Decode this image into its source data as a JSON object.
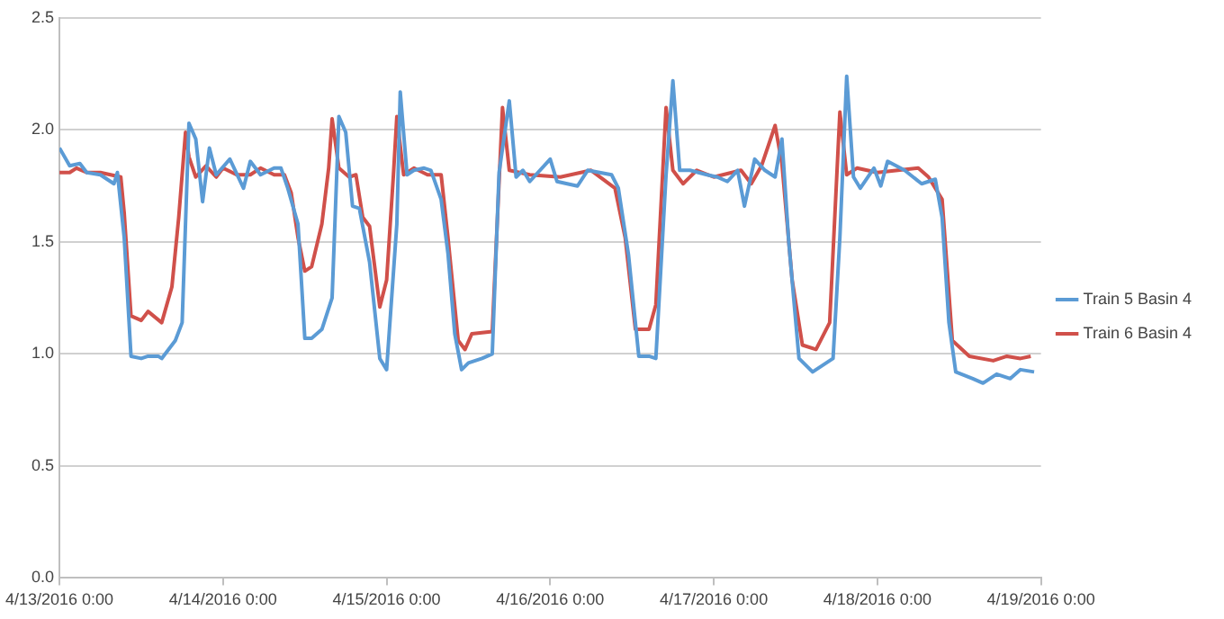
{
  "chart_data": {
    "type": "line",
    "xlim": [
      "2016-04-13T00:00",
      "2016-04-19T00:00"
    ],
    "xticks": [
      {
        "value": "2016-04-13T00:00",
        "label": "4/13/2016 0:00"
      },
      {
        "value": "2016-04-14T00:00",
        "label": "4/14/2016 0:00"
      },
      {
        "value": "2016-04-15T00:00",
        "label": "4/15/2016 0:00"
      },
      {
        "value": "2016-04-16T00:00",
        "label": "4/16/2016 0:00"
      },
      {
        "value": "2016-04-17T00:00",
        "label": "4/17/2016 0:00"
      },
      {
        "value": "2016-04-18T00:00",
        "label": "4/18/2016 0:00"
      },
      {
        "value": "2016-04-19T00:00",
        "label": "4/19/2016 0:00"
      }
    ],
    "ylim": [
      0,
      2.5
    ],
    "yticks": [
      {
        "value": 0,
        "label": "0.0"
      },
      {
        "value": 0.5,
        "label": "0.5"
      },
      {
        "value": 1,
        "label": "1.0"
      },
      {
        "value": 1.5,
        "label": "1.5"
      },
      {
        "value": 2,
        "label": "2.0"
      },
      {
        "value": 2.5,
        "label": "2.5"
      }
    ],
    "grid": "y",
    "legend": "right",
    "marker": "none",
    "line_style": "solid",
    "series": [
      {
        "name": "Train 5 Basin 4",
        "color": "#5b9bd5",
        "x": [
          "2016-04-13T00:00",
          "2016-04-13T01:30",
          "2016-04-13T03:00",
          "2016-04-13T04:00",
          "2016-04-13T06:00",
          "2016-04-13T08:00",
          "2016-04-13T08:30",
          "2016-04-13T09:30",
          "2016-04-13T10:30",
          "2016-04-13T12:00",
          "2016-04-13T13:00",
          "2016-04-13T14:30",
          "2016-04-13T15:00",
          "2016-04-13T17:00",
          "2016-04-13T18:00",
          "2016-04-13T19:00",
          "2016-04-13T20:00",
          "2016-04-13T21:00",
          "2016-04-13T22:00",
          "2016-04-13T23:00",
          "2016-04-14T01:00",
          "2016-04-14T03:00",
          "2016-04-14T04:00",
          "2016-04-14T05:30",
          "2016-04-14T07:30",
          "2016-04-14T08:30",
          "2016-04-14T09:30",
          "2016-04-14T11:00",
          "2016-04-14T12:00",
          "2016-04-14T13:00",
          "2016-04-14T14:30",
          "2016-04-14T16:00",
          "2016-04-14T17:00",
          "2016-04-14T18:00",
          "2016-04-14T19:00",
          "2016-04-14T20:00",
          "2016-04-14T21:30",
          "2016-04-14T23:00",
          "2016-04-15T00:00",
          "2016-04-15T01:30",
          "2016-04-15T02:00",
          "2016-04-15T03:00",
          "2016-04-15T04:00",
          "2016-04-15T05:30",
          "2016-04-15T06:30",
          "2016-04-15T08:00",
          "2016-04-15T09:00",
          "2016-04-15T10:00",
          "2016-04-15T11:00",
          "2016-04-15T12:00",
          "2016-04-15T14:00",
          "2016-04-15T15:30",
          "2016-04-15T16:30",
          "2016-04-15T18:00",
          "2016-04-15T19:00",
          "2016-04-15T20:00",
          "2016-04-15T21:00",
          "2016-04-16T00:00",
          "2016-04-16T01:00",
          "2016-04-16T04:00",
          "2016-04-16T05:30",
          "2016-04-16T09:00",
          "2016-04-16T10:00",
          "2016-04-16T11:30",
          "2016-04-16T13:00",
          "2016-04-16T14:30",
          "2016-04-16T15:30",
          "2016-04-16T17:00",
          "2016-04-16T18:00",
          "2016-04-16T19:00",
          "2016-04-16T20:30",
          "2016-04-16T23:00",
          "2016-04-17T00:30",
          "2016-04-17T02:00",
          "2016-04-17T03:30",
          "2016-04-17T04:30",
          "2016-04-17T06:00",
          "2016-04-17T07:30",
          "2016-04-17T09:00",
          "2016-04-17T10:00",
          "2016-04-17T11:00",
          "2016-04-17T12:30",
          "2016-04-17T14:30",
          "2016-04-17T17:30",
          "2016-04-17T18:30",
          "2016-04-17T19:30",
          "2016-04-17T20:30",
          "2016-04-17T21:30",
          "2016-04-17T23:30",
          "2016-04-18T00:30",
          "2016-04-18T01:30",
          "2016-04-18T04:00",
          "2016-04-18T06:30",
          "2016-04-18T08:30",
          "2016-04-18T09:30",
          "2016-04-18T10:30",
          "2016-04-18T11:30",
          "2016-04-18T14:00",
          "2016-04-18T15:30",
          "2016-04-18T17:30",
          "2016-04-18T19:30",
          "2016-04-18T21:00",
          "2016-04-18T23:00"
        ],
        "values": [
          1.92,
          1.84,
          1.85,
          1.81,
          1.8,
          1.76,
          1.81,
          1.52,
          0.99,
          0.98,
          0.99,
          0.99,
          0.98,
          1.06,
          1.14,
          2.03,
          1.96,
          1.68,
          1.92,
          1.8,
          1.87,
          1.74,
          1.86,
          1.8,
          1.83,
          1.83,
          1.74,
          1.58,
          1.07,
          1.07,
          1.11,
          1.25,
          2.06,
          1.99,
          1.66,
          1.65,
          1.41,
          0.98,
          0.93,
          1.58,
          2.17,
          1.8,
          1.82,
          1.83,
          1.82,
          1.69,
          1.45,
          1.09,
          0.93,
          0.96,
          0.98,
          1.0,
          1.81,
          2.13,
          1.79,
          1.82,
          1.77,
          1.87,
          1.77,
          1.75,
          1.82,
          1.8,
          1.74,
          1.44,
          0.99,
          0.99,
          0.98,
          1.8,
          2.22,
          1.82,
          1.82,
          1.8,
          1.79,
          1.77,
          1.82,
          1.66,
          1.87,
          1.82,
          1.79,
          1.96,
          1.5,
          0.98,
          0.92,
          0.98,
          1.52,
          2.24,
          1.79,
          1.74,
          1.83,
          1.75,
          1.86,
          1.82,
          1.76,
          1.78,
          1.61,
          1.14,
          0.92,
          0.89,
          0.87,
          0.91,
          0.89,
          0.93,
          0.92
        ]
      },
      {
        "name": "Train 6 Basin 4",
        "color": "#d0504a",
        "x": [
          "2016-04-13T00:00",
          "2016-04-13T01:30",
          "2016-04-13T02:30",
          "2016-04-13T04:00",
          "2016-04-13T06:00",
          "2016-04-13T07:30",
          "2016-04-13T09:00",
          "2016-04-13T09:30",
          "2016-04-13T10:30",
          "2016-04-13T12:00",
          "2016-04-13T13:00",
          "2016-04-13T15:00",
          "2016-04-13T16:30",
          "2016-04-13T17:30",
          "2016-04-13T18:30",
          "2016-04-13T19:00",
          "2016-04-13T20:00",
          "2016-04-13T21:30",
          "2016-04-13T23:00",
          "2016-04-14T00:00",
          "2016-04-14T02:00",
          "2016-04-14T04:00",
          "2016-04-14T05:30",
          "2016-04-14T07:30",
          "2016-04-14T09:00",
          "2016-04-14T10:00",
          "2016-04-14T11:00",
          "2016-04-14T12:00",
          "2016-04-14T13:00",
          "2016-04-14T14:30",
          "2016-04-14T15:30",
          "2016-04-14T16:00",
          "2016-04-14T17:00",
          "2016-04-14T18:30",
          "2016-04-14T19:30",
          "2016-04-14T20:30",
          "2016-04-14T21:30",
          "2016-04-14T23:00",
          "2016-04-15T00:00",
          "2016-04-15T01:00",
          "2016-04-15T01:30",
          "2016-04-15T02:30",
          "2016-04-15T04:00",
          "2016-04-15T06:00",
          "2016-04-15T08:00",
          "2016-04-15T09:00",
          "2016-04-15T10:30",
          "2016-04-15T11:30",
          "2016-04-15T12:30",
          "2016-04-15T15:30",
          "2016-04-15T17:00",
          "2016-04-15T18:00",
          "2016-04-15T21:00",
          "2016-04-16T01:30",
          "2016-04-16T06:00",
          "2016-04-16T09:30",
          "2016-04-16T11:00",
          "2016-04-16T12:30",
          "2016-04-16T14:30",
          "2016-04-16T15:30",
          "2016-04-16T17:00",
          "2016-04-16T18:00",
          "2016-04-16T19:30",
          "2016-04-16T21:30",
          "2016-04-17T00:00",
          "2016-04-17T04:00",
          "2016-04-17T05:30",
          "2016-04-17T07:00",
          "2016-04-17T09:00",
          "2016-04-17T10:00",
          "2016-04-17T11:30",
          "2016-04-17T13:00",
          "2016-04-17T15:00",
          "2016-04-17T17:00",
          "2016-04-17T18:30",
          "2016-04-17T19:30",
          "2016-04-17T21:00",
          "2016-04-18T00:00",
          "2016-04-18T03:00",
          "2016-04-18T06:00",
          "2016-04-18T07:30",
          "2016-04-18T09:30",
          "2016-04-18T11:00",
          "2016-04-18T13:30",
          "2016-04-18T17:00",
          "2016-04-18T19:00",
          "2016-04-18T21:00",
          "2016-04-18T22:30"
        ],
        "values": [
          1.81,
          1.81,
          1.83,
          1.81,
          1.81,
          1.8,
          1.79,
          1.63,
          1.17,
          1.15,
          1.19,
          1.14,
          1.3,
          1.61,
          1.99,
          1.88,
          1.79,
          1.84,
          1.79,
          1.83,
          1.8,
          1.8,
          1.83,
          1.8,
          1.8,
          1.72,
          1.52,
          1.37,
          1.39,
          1.58,
          1.83,
          2.05,
          1.83,
          1.79,
          1.8,
          1.61,
          1.57,
          1.21,
          1.33,
          1.8,
          2.06,
          1.8,
          1.83,
          1.8,
          1.8,
          1.52,
          1.06,
          1.02,
          1.09,
          1.1,
          2.1,
          1.82,
          1.8,
          1.79,
          1.82,
          1.74,
          1.52,
          1.11,
          1.11,
          1.22,
          2.1,
          1.82,
          1.76,
          1.82,
          1.79,
          1.82,
          1.76,
          1.84,
          2.02,
          1.85,
          1.33,
          1.04,
          1.02,
          1.14,
          2.08,
          1.8,
          1.83,
          1.81,
          1.82,
          1.83,
          1.79,
          1.69,
          1.06,
          0.99,
          0.97,
          0.99,
          0.98,
          0.99
        ]
      }
    ]
  }
}
